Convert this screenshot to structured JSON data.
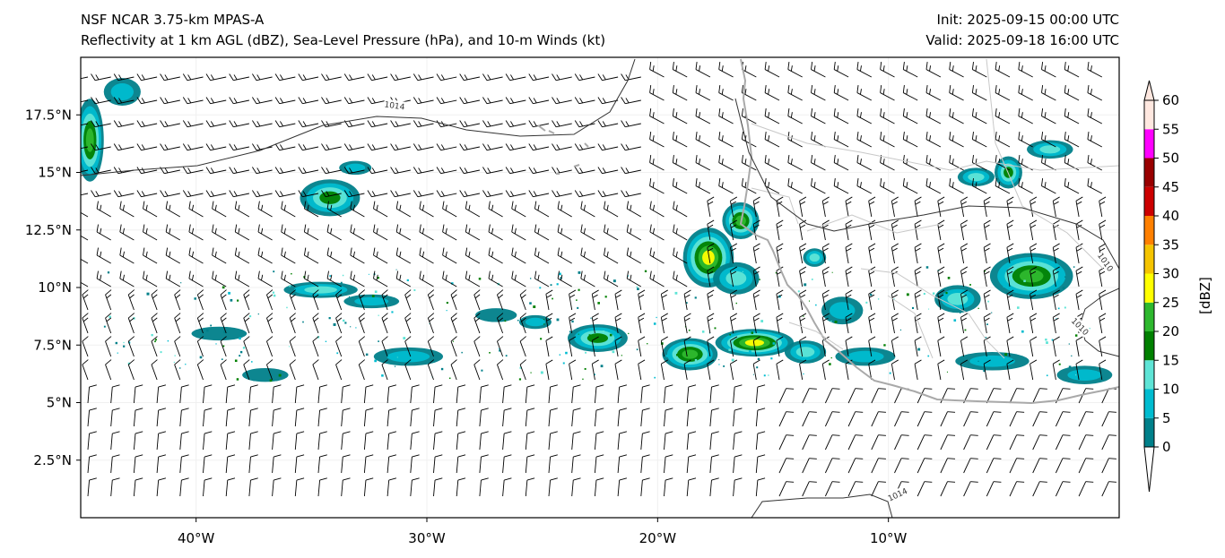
{
  "header": {
    "title_line1": "NSF NCAR 3.75-km MPAS-A",
    "title_line2": "Reflectivity at 1 km AGL (dBZ), Sea-Level Pressure (hPa), and 10-m Winds (kt)",
    "init": "Init: 2025-09-15 00:00 UTC",
    "valid": "Valid: 2025-09-18 16:00 UTC"
  },
  "map": {
    "lon_range": [
      -45,
      0
    ],
    "lat_range": [
      0,
      20
    ],
    "lon_ticks": [
      {
        "value": -40,
        "label": "40°W"
      },
      {
        "value": -30,
        "label": "30°W"
      },
      {
        "value": -20,
        "label": "20°W"
      },
      {
        "value": -10,
        "label": "10°W"
      }
    ],
    "lat_ticks": [
      {
        "value": 2.5,
        "label": "2.5°N"
      },
      {
        "value": 5,
        "label": "5°N"
      },
      {
        "value": 7.5,
        "label": "7.5°N"
      },
      {
        "value": 10,
        "label": "10°N"
      },
      {
        "value": 12.5,
        "label": "12.5°N"
      },
      {
        "value": 15,
        "label": "15°N"
      },
      {
        "value": 17.5,
        "label": "17.5°N"
      }
    ],
    "isobar_labels": [
      {
        "text": "1014",
        "lon": -31.4,
        "lat": 17.9
      },
      {
        "text": "1014",
        "lon": -9.6,
        "lat": 1.0
      },
      {
        "text": "1010",
        "lon": -0.6,
        "lat": 11.1
      },
      {
        "text": "1010",
        "lon": -1.7,
        "lat": 8.3
      }
    ],
    "colors": {
      "coastline": "#a9a9a9",
      "isobar": "#333333",
      "barb": "#000000"
    }
  },
  "colorbar": {
    "label": "[dBZ]",
    "ticks": [
      "0",
      "5",
      "10",
      "15",
      "20",
      "25",
      "30",
      "35",
      "40",
      "45",
      "50",
      "55",
      "60"
    ],
    "colors": [
      "#ffffff",
      "#00808a",
      "#00bcd0",
      "#5ee4d6",
      "#008000",
      "#2eb82e",
      "#ffff00",
      "#f5c400",
      "#ff8000",
      "#cc0000",
      "#990000",
      "#ff00ff",
      "#ffe8e0"
    ]
  },
  "reflectivity_cells": [
    {
      "lon": -44.6,
      "lat": 16.4,
      "rx": 0.6,
      "ry": 1.8,
      "max": 5
    },
    {
      "lon": -43.2,
      "lat": 18.5,
      "rx": 0.8,
      "ry": 0.6,
      "max": 2
    },
    {
      "lon": -34.2,
      "lat": 13.9,
      "rx": 1.3,
      "ry": 0.8,
      "max": 4
    },
    {
      "lon": -33.1,
      "lat": 15.2,
      "rx": 0.7,
      "ry": 0.3,
      "max": 2
    },
    {
      "lon": -34.6,
      "lat": 9.9,
      "rx": 1.6,
      "ry": 0.35,
      "max": 3
    },
    {
      "lon": -32.4,
      "lat": 9.4,
      "rx": 1.2,
      "ry": 0.3,
      "max": 2
    },
    {
      "lon": -30.8,
      "lat": 7.0,
      "rx": 1.5,
      "ry": 0.4,
      "max": 2
    },
    {
      "lon": -22.6,
      "lat": 7.8,
      "rx": 1.3,
      "ry": 0.6,
      "max": 4
    },
    {
      "lon": -25.3,
      "lat": 8.5,
      "rx": 0.7,
      "ry": 0.3,
      "max": 2
    },
    {
      "lon": -17.8,
      "lat": 11.3,
      "rx": 1.1,
      "ry": 1.3,
      "max": 6
    },
    {
      "lon": -16.4,
      "lat": 12.9,
      "rx": 0.8,
      "ry": 0.8,
      "max": 5
    },
    {
      "lon": -16.6,
      "lat": 10.4,
      "rx": 1.0,
      "ry": 0.7,
      "max": 3
    },
    {
      "lon": -18.6,
      "lat": 7.1,
      "rx": 1.2,
      "ry": 0.7,
      "max": 5
    },
    {
      "lon": -15.8,
      "lat": 7.6,
      "rx": 1.7,
      "ry": 0.6,
      "max": 6
    },
    {
      "lon": -13.6,
      "lat": 7.2,
      "rx": 0.9,
      "ry": 0.5,
      "max": 3
    },
    {
      "lon": -11.0,
      "lat": 7.0,
      "rx": 1.3,
      "ry": 0.4,
      "max": 2
    },
    {
      "lon": -12.0,
      "lat": 9.0,
      "rx": 0.9,
      "ry": 0.6,
      "max": 2
    },
    {
      "lon": -3.8,
      "lat": 10.5,
      "rx": 1.8,
      "ry": 1.0,
      "max": 5
    },
    {
      "lon": -7.0,
      "lat": 9.5,
      "rx": 1.0,
      "ry": 0.6,
      "max": 3
    },
    {
      "lon": -6.2,
      "lat": 14.8,
      "rx": 0.8,
      "ry": 0.4,
      "max": 3
    },
    {
      "lon": -4.8,
      "lat": 15.0,
      "rx": 0.6,
      "ry": 0.7,
      "max": 4
    },
    {
      "lon": -3.0,
      "lat": 16.0,
      "rx": 1.0,
      "ry": 0.4,
      "max": 3
    },
    {
      "lon": -5.5,
      "lat": 6.8,
      "rx": 1.6,
      "ry": 0.4,
      "max": 2
    },
    {
      "lon": -1.5,
      "lat": 6.2,
      "rx": 1.2,
      "ry": 0.4,
      "max": 2
    },
    {
      "lon": -13.2,
      "lat": 11.3,
      "rx": 0.5,
      "ry": 0.4,
      "max": 3
    },
    {
      "lon": -27.0,
      "lat": 8.8,
      "rx": 0.9,
      "ry": 0.3,
      "max": 1
    },
    {
      "lon": -39.0,
      "lat": 8.0,
      "rx": 1.2,
      "ry": 0.3,
      "max": 1
    },
    {
      "lon": -37.0,
      "lat": 6.2,
      "rx": 1.0,
      "ry": 0.3,
      "max": 1
    }
  ]
}
